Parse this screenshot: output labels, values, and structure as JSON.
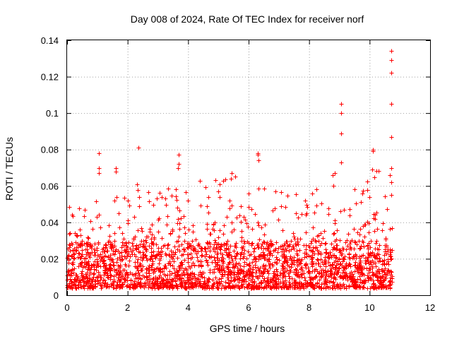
{
  "chart_data": {
    "type": "scatter",
    "title": "Day 008 of 2024, Rate Of TEC Index for receiver norf",
    "xlabel": "GPS time / hours",
    "ylabel": "ROTI / TECUs",
    "xlim": [
      0,
      12
    ],
    "ylim": [
      0,
      0.14
    ],
    "xticks": [
      0,
      2,
      4,
      6,
      8,
      10,
      12
    ],
    "yticks": [
      0,
      0.02,
      0.04,
      0.06,
      0.08,
      0.1,
      0.12,
      0.14
    ],
    "xtick_labels": [
      "0",
      "2",
      "4",
      "6",
      "8",
      "10",
      "12"
    ],
    "ytick_labels": [
      "0",
      "0.02",
      "0.04",
      "0.06",
      "0.08",
      "0.1",
      "0.12",
      "0.14"
    ],
    "grid": true,
    "marker": "+",
    "color": "#ff0000",
    "series": [
      {
        "name": "ROTI",
        "x_range": [
          0,
          10.75
        ],
        "baseline_band": [
          0.004,
          0.03
        ],
        "notable_points": [
          {
            "x": 1.05,
            "y": 0.078
          },
          {
            "x": 1.05,
            "y": 0.07
          },
          {
            "x": 1.05,
            "y": 0.067
          },
          {
            "x": 1.6,
            "y": 0.07
          },
          {
            "x": 1.6,
            "y": 0.068
          },
          {
            "x": 2.35,
            "y": 0.081
          },
          {
            "x": 2.3,
            "y": 0.061
          },
          {
            "x": 3.7,
            "y": 0.077
          },
          {
            "x": 3.68,
            "y": 0.072
          },
          {
            "x": 3.66,
            "y": 0.07
          },
          {
            "x": 4.4,
            "y": 0.063
          },
          {
            "x": 5.45,
            "y": 0.067
          },
          {
            "x": 5.42,
            "y": 0.064
          },
          {
            "x": 6.3,
            "y": 0.078
          },
          {
            "x": 6.3,
            "y": 0.077
          },
          {
            "x": 6.32,
            "y": 0.074
          },
          {
            "x": 8.85,
            "y": 0.067
          },
          {
            "x": 9.05,
            "y": 0.105
          },
          {
            "x": 9.07,
            "y": 0.1
          },
          {
            "x": 9.05,
            "y": 0.089
          },
          {
            "x": 9.05,
            "y": 0.073
          },
          {
            "x": 10.1,
            "y": 0.08
          },
          {
            "x": 10.12,
            "y": 0.079
          },
          {
            "x": 10.08,
            "y": 0.069
          },
          {
            "x": 10.72,
            "y": 0.134
          },
          {
            "x": 10.72,
            "y": 0.129
          },
          {
            "x": 10.72,
            "y": 0.122
          },
          {
            "x": 10.72,
            "y": 0.105
          },
          {
            "x": 10.72,
            "y": 0.087
          },
          {
            "x": 10.72,
            "y": 0.07
          },
          {
            "x": 10.72,
            "y": 0.062
          },
          {
            "x": 10.72,
            "y": 0.055
          }
        ],
        "upper_envelope": [
          {
            "x": 0.1,
            "y": 0.05
          },
          {
            "x": 0.55,
            "y": 0.062
          },
          {
            "x": 1.2,
            "y": 0.05
          },
          {
            "x": 2.3,
            "y": 0.06
          },
          {
            "x": 2.6,
            "y": 0.06
          },
          {
            "x": 4.4,
            "y": 0.063
          },
          {
            "x": 5.4,
            "y": 0.067
          },
          {
            "x": 7.2,
            "y": 0.056
          },
          {
            "x": 8.0,
            "y": 0.057
          },
          {
            "x": 8.8,
            "y": 0.067
          },
          {
            "x": 9.3,
            "y": 0.055
          },
          {
            "x": 10.1,
            "y": 0.069
          }
        ]
      }
    ]
  }
}
